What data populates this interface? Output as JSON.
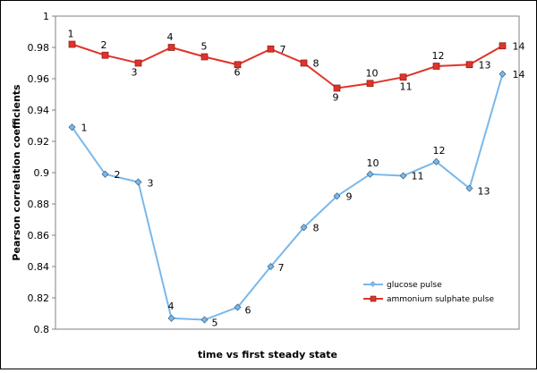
{
  "chart_data": {
    "type": "line",
    "title": "",
    "xlabel": "time vs first steady state",
    "ylabel": "Pearson correlation coefficients",
    "ylim": [
      0.8,
      1.0
    ],
    "yticks": [
      "0.8",
      "0.82",
      "0.84",
      "0.86",
      "0.88",
      "0.9",
      "0.92",
      "0.94",
      "0.96",
      "0.98",
      "1"
    ],
    "x": [
      1,
      2,
      3,
      4,
      5,
      6,
      7,
      8,
      9,
      10,
      11,
      12,
      13,
      14
    ],
    "grid": false,
    "legend_position": "lower-right",
    "series": [
      {
        "name": "glucose pulse",
        "color": "#7ab8ea",
        "marker": "diamond",
        "values": [
          0.929,
          0.899,
          0.894,
          0.807,
          0.806,
          0.814,
          0.84,
          0.865,
          0.885,
          0.899,
          0.898,
          0.907,
          0.89,
          0.963
        ],
        "labels": [
          "1",
          "2",
          "3",
          "4",
          "5",
          "6",
          "7",
          "8",
          "9",
          "10",
          "11",
          "12",
          "13",
          "14"
        ]
      },
      {
        "name": "ammonium sulphate pulse",
        "color": "#e0332a",
        "marker": "square",
        "values": [
          0.982,
          0.975,
          0.97,
          0.98,
          0.974,
          0.969,
          0.979,
          0.97,
          0.954,
          0.957,
          0.961,
          0.968,
          0.969,
          0.981
        ],
        "labels": [
          "1",
          "2",
          "3",
          "4",
          "5",
          "6",
          "7",
          "8",
          "9",
          "10",
          "11",
          "12",
          "13",
          "14"
        ]
      }
    ]
  }
}
